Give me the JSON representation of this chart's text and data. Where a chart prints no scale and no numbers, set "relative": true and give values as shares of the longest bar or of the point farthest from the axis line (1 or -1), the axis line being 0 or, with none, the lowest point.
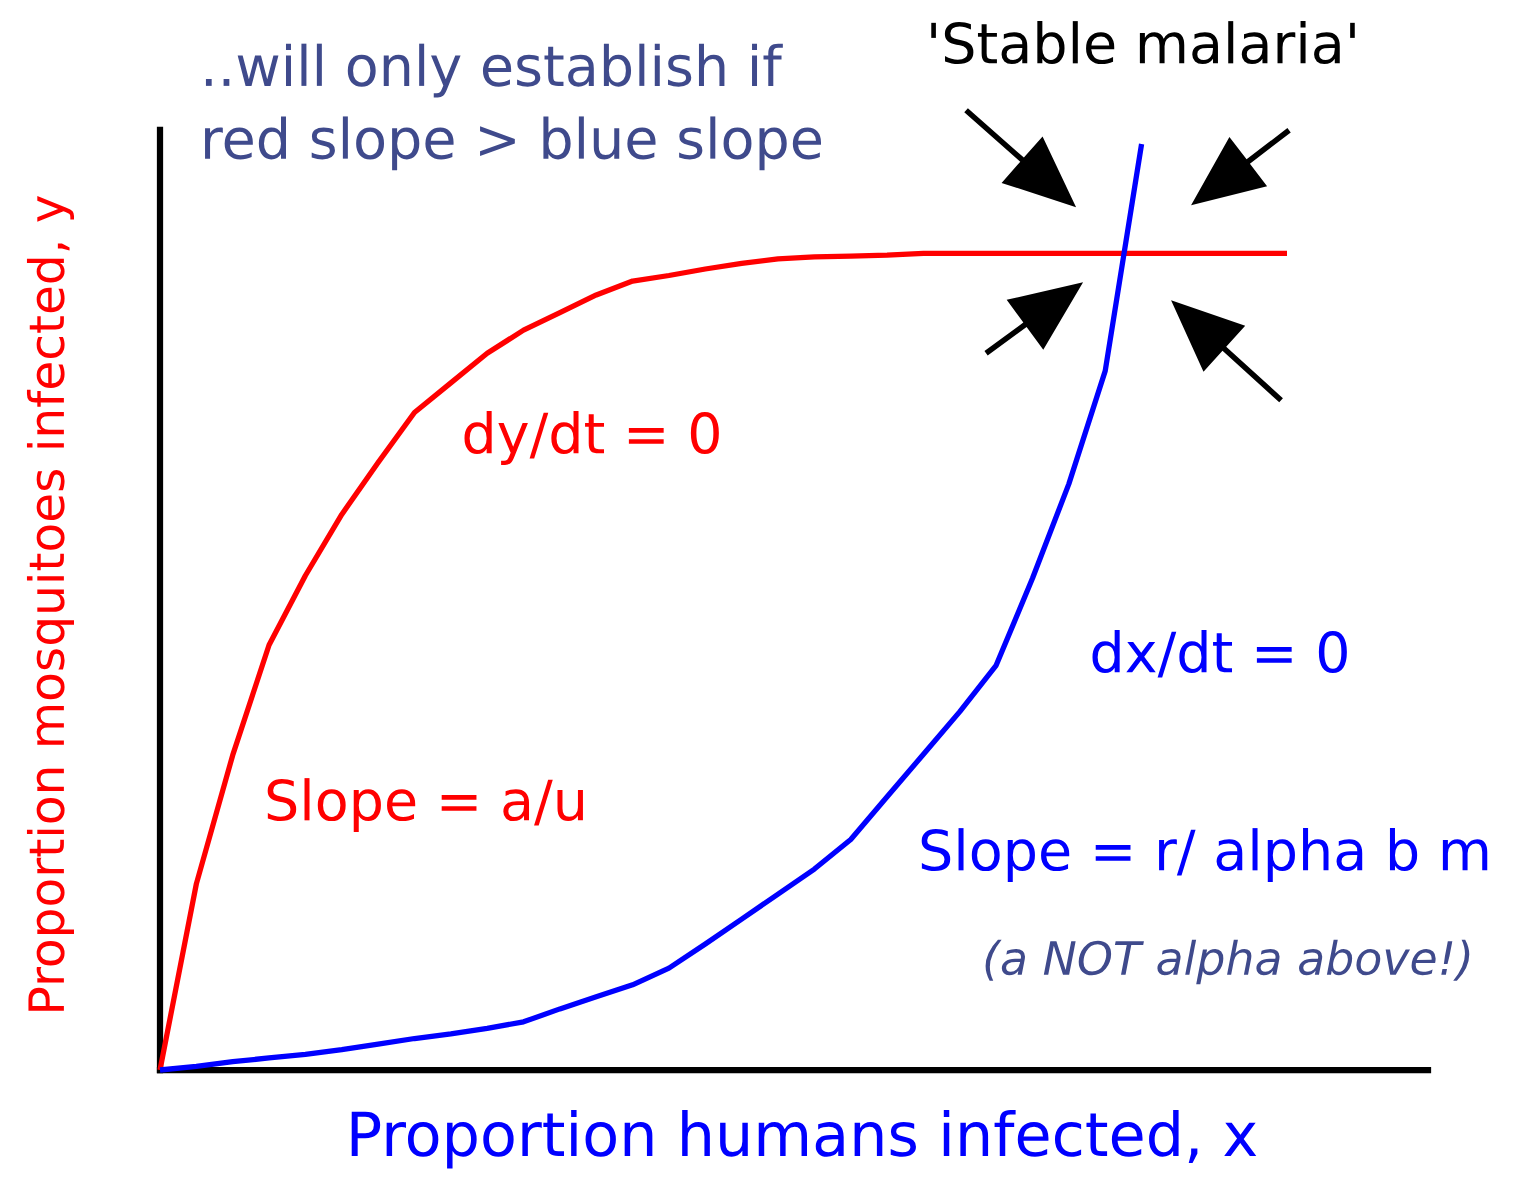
{
  "chart_data": {
    "type": "line",
    "relative": true,
    "title": "..will only establish if\nred slope > blue slope",
    "xlabel": "Proportion humans infected, x",
    "ylabel": "Proportion mosquitoes infected, y",
    "categories": [
      null,
      null,
      null,
      null,
      null,
      null,
      null,
      null,
      null,
      null,
      null,
      null,
      null,
      null,
      null,
      null,
      null,
      null,
      null,
      null,
      null,
      null,
      null,
      null,
      null,
      null,
      null,
      null,
      null,
      null,
      null,
      null
    ],
    "series": [
      {
        "name": "dy/dt = 0",
        "color": "#ff0000",
        "values": [
          0,
          0.201,
          0.34,
          0.459,
          0.534,
          0.6,
          0.656,
          0.71,
          0.742,
          0.774,
          0.799,
          0.818,
          0.837,
          0.852,
          0.858,
          0.865,
          0.871,
          0.876,
          0.878,
          0.879,
          0.88,
          0.882,
          0.882,
          0.882,
          0.882,
          0.882,
          0.882,
          0.882,
          0.882,
          0.882,
          0.882,
          0.882
        ]
      },
      {
        "name": "dx/dt = 0",
        "color": "#0000ff",
        "values": [
          0,
          0.004,
          0.009,
          0.013,
          0.017,
          0.022,
          0.028,
          0.034,
          0.039,
          0.045,
          0.052,
          0.066,
          0.079,
          0.092,
          0.11,
          0.136,
          0.163,
          0.19,
          0.217,
          0.249,
          0.295,
          0.341,
          0.387,
          0.437,
          0.531,
          0.633,
          0.755,
          1,
          null,
          null,
          null,
          null
        ]
      }
    ],
    "annotations": [
      "'Stable malaria'",
      "Slope = a/u",
      "Slope = r/ alpha b m",
      "(a NOT alpha above!)"
    ]
  }
}
